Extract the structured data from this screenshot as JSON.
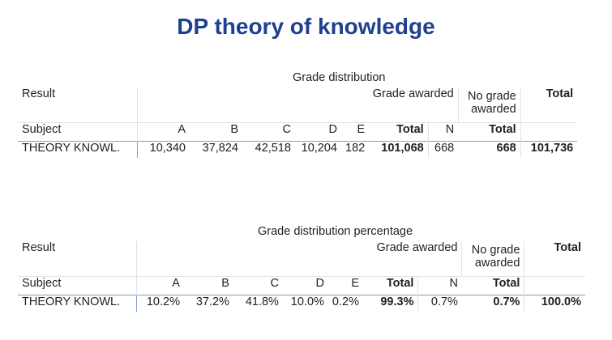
{
  "page": {
    "title": "DP theory of knowledge"
  },
  "tables": [
    {
      "caption": "Grade distribution",
      "result_label": "Result",
      "subject_label": "Subject",
      "group_awarded": "Grade awarded",
      "group_no_grade": "No grade awarded",
      "group_total": "Total",
      "columns": [
        "A",
        "B",
        "C",
        "D",
        "E",
        "Total",
        "N",
        "Total"
      ],
      "row": {
        "subject": "THEORY KNOWL.",
        "values": [
          "10,340",
          "37,824",
          "42,518",
          "10,204",
          "182",
          "101,068",
          "668",
          "668",
          "101,736"
        ]
      }
    },
    {
      "caption": "Grade distribution percentage",
      "result_label": "Result",
      "subject_label": "Subject",
      "group_awarded": "Grade awarded",
      "group_no_grade": "No grade awarded",
      "group_total": "Total",
      "columns": [
        "A",
        "B",
        "C",
        "D",
        "E",
        "Total",
        "N",
        "Total"
      ],
      "row": {
        "subject": "THEORY KNOWL.",
        "values": [
          "10.2%",
          "37.2%",
          "41.8%",
          "10.0%",
          "0.2%",
          "99.3%",
          "0.7%",
          "0.7%",
          "100.0%"
        ]
      }
    }
  ]
}
